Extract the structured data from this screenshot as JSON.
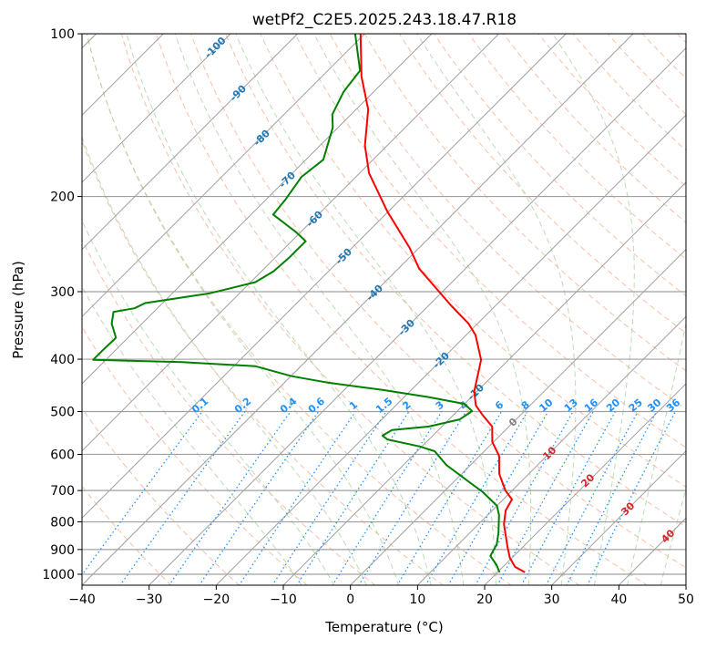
{
  "chart_data": {
    "type": "skewt",
    "title": "wetPf2_C2E5.2025.243.18.47.R18",
    "xlabel": "Temperature (°C)",
    "ylabel": "Pressure (hPa)",
    "xlim": [
      -40,
      50
    ],
    "ylim_hpa": [
      1050,
      100
    ],
    "x_ticks": [
      "−40",
      "−30",
      "−20",
      "−10",
      "0",
      "10",
      "20",
      "30",
      "40",
      "50"
    ],
    "x_tick_values": [
      -40,
      -30,
      -20,
      -10,
      0,
      10,
      20,
      30,
      40,
      50
    ],
    "y_ticks": [
      "100",
      "200",
      "300",
      "400",
      "500",
      "600",
      "700",
      "800",
      "900",
      "1000"
    ],
    "y_tick_values": [
      100,
      200,
      300,
      400,
      500,
      600,
      700,
      800,
      900,
      1000
    ],
    "grid": true,
    "colors": {
      "temperature": "#ff0000",
      "dewpoint": "#008000",
      "isotherm": "#a0a0a0",
      "dry_adiabat": "#f4a582",
      "moist_adiabat": "#a6d5a0",
      "mixing_ratio": "#1e90ff",
      "cold_label": "#1f77b4",
      "zero_label": "#808080",
      "warm_label": "#d62728"
    },
    "series": [
      {
        "name": "Temperature",
        "pressure": [
          992,
          969,
          933,
          890,
          808,
          762,
          727,
          700,
          652,
          604,
          569,
          533,
          507,
          487,
          459,
          401,
          361,
          344,
          318,
          272,
          249,
          213,
          181,
          161,
          138,
          120,
          100
        ],
        "values": [
          24.1,
          21.8,
          19.7,
          17.7,
          13.8,
          12.0,
          11.3,
          9.0,
          5.6,
          2.9,
          -0.2,
          -2.5,
          -5.7,
          -8.1,
          -10.4,
          -14.1,
          -18.6,
          -21.3,
          -26.7,
          -36.9,
          -41.4,
          -50.2,
          -58.6,
          -63.3,
          -68.2,
          -74.1,
          -80.6
        ]
      },
      {
        "name": "Dewpoint",
        "pressure": [
          992,
          962,
          925,
          880,
          839,
          777,
          747,
          705,
          665,
          628,
          592,
          580,
          563,
          554,
          541,
          533,
          517,
          499,
          484,
          470,
          456,
          442,
          430,
          412,
          405,
          401,
          386,
          365,
          344,
          327,
          322,
          315,
          302,
          288,
          275,
          259,
          242,
          233,
          216,
          203,
          184,
          171,
          149,
          141,
          128,
          117,
          100
        ],
        "values": [
          20.3,
          18.8,
          16.5,
          15.7,
          14.3,
          11.7,
          10.0,
          5.9,
          1.1,
          -3.6,
          -7.4,
          -10.4,
          -16.2,
          -17.5,
          -16.9,
          -12.0,
          -8.4,
          -7.8,
          -10.0,
          -16.4,
          -24.3,
          -33.5,
          -39.9,
          -46.8,
          -58.3,
          -71.9,
          -71.9,
          -71.8,
          -74.5,
          -76.0,
          -73.4,
          -72.6,
          -64.4,
          -59.3,
          -58.2,
          -57.9,
          -57.9,
          -60.6,
          -66.7,
          -67.1,
          -68.1,
          -67.4,
          -70.8,
          -72.8,
          -74.5,
          -75.2,
          -81.4
        ]
      }
    ],
    "mixing_ratio_labels": [
      "0.1",
      "0.2",
      "0.4",
      "0.6",
      "1",
      "1.5",
      "2",
      "3",
      "4",
      "6",
      "8",
      "10",
      "13",
      "16",
      "20",
      "25",
      "30",
      "36"
    ],
    "mixing_ratio_values": [
      0.1,
      0.2,
      0.4,
      0.6,
      1,
      1.5,
      2,
      3,
      4,
      6,
      8,
      10,
      13,
      16,
      20,
      25,
      30,
      36
    ],
    "adiabat_labels": [
      "-100",
      "-90",
      "-80",
      "-70",
      "-60",
      "-50",
      "-40",
      "-30",
      "-20",
      "-10",
      "0",
      "10",
      "20",
      "30",
      "40"
    ]
  }
}
